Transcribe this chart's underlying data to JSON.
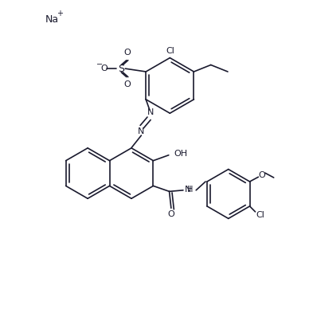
{
  "background_color": "#ffffff",
  "line_color": "#1a1a2e",
  "figsize": [
    3.88,
    3.98
  ],
  "dpi": 100,
  "xlim": [
    0,
    10
  ],
  "ylim": [
    0,
    10.26
  ]
}
